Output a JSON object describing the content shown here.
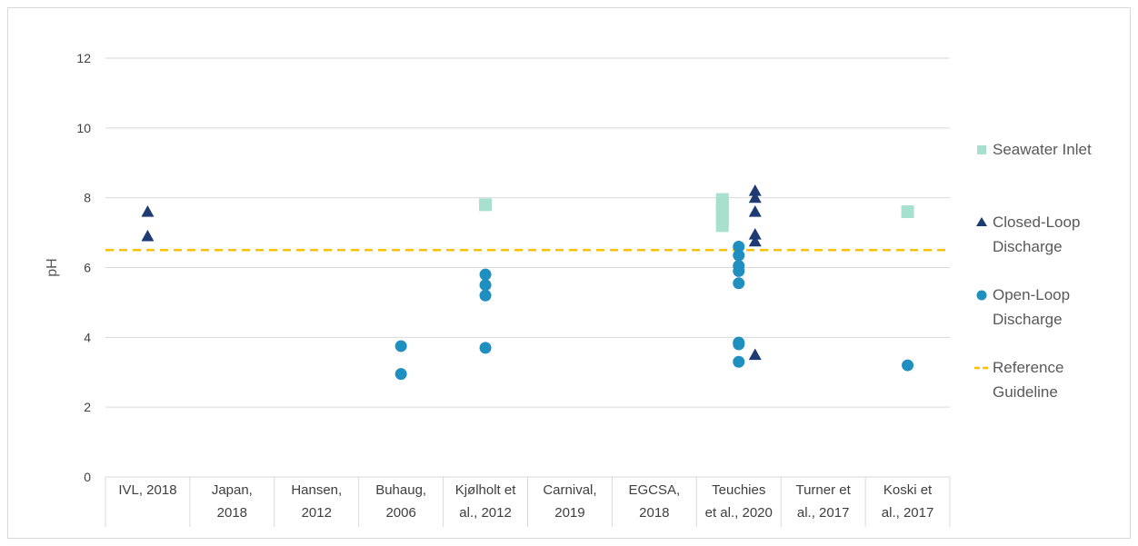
{
  "chart_data": {
    "type": "scatter",
    "ylabel": "pH",
    "xlabel": "",
    "ylim": [
      0,
      12
    ],
    "yticks": [
      0,
      2,
      4,
      6,
      8,
      10,
      12
    ],
    "grid": "horizontal",
    "legend_position": "right",
    "categories": [
      [
        "IVL, 2018"
      ],
      [
        "Japan,",
        "2018"
      ],
      [
        "Hansen,",
        "2012"
      ],
      [
        "Buhaug,",
        "2006"
      ],
      [
        "Kjølholt et",
        "al., 2012"
      ],
      [
        "Carnival,",
        "2019"
      ],
      [
        "EGCSA,",
        "2018"
      ],
      [
        "Teuchies",
        "et al., 2020"
      ],
      [
        "Turner et",
        "al., 2017"
      ],
      [
        "Koski et",
        "al., 2017"
      ]
    ],
    "reference_line": {
      "value": 6.5,
      "color": "#ffc000"
    },
    "series": [
      {
        "name": "Seawater Inlet",
        "marker": "square",
        "color": "#a8e0cf",
        "points": [
          {
            "category": 4,
            "y": 7.8
          },
          {
            "category": 7,
            "y": 7.2
          },
          {
            "category": 7,
            "y": 7.35
          },
          {
            "category": 7,
            "y": 7.5
          },
          {
            "category": 7,
            "y": 7.65
          },
          {
            "category": 7,
            "y": 7.8
          },
          {
            "category": 7,
            "y": 7.95
          },
          {
            "category": 9,
            "y": 7.6
          }
        ]
      },
      {
        "name": "Closed-Loop Discharge",
        "marker": "triangle",
        "color": "#1f3b73",
        "points": [
          {
            "category": 0,
            "y": 7.6
          },
          {
            "category": 0,
            "y": 6.9
          },
          {
            "category": 7,
            "y": 8.2
          },
          {
            "category": 7,
            "y": 8.0
          },
          {
            "category": 7,
            "y": 7.6
          },
          {
            "category": 7,
            "y": 6.95
          },
          {
            "category": 7,
            "y": 6.75
          },
          {
            "category": 7,
            "y": 3.5
          }
        ]
      },
      {
        "name": "Open-Loop Discharge",
        "marker": "circle",
        "color": "#1f8fbf",
        "points": [
          {
            "category": 3,
            "y": 3.75
          },
          {
            "category": 3,
            "y": 2.95
          },
          {
            "category": 4,
            "y": 5.8
          },
          {
            "category": 4,
            "y": 5.5
          },
          {
            "category": 4,
            "y": 5.2
          },
          {
            "category": 4,
            "y": 3.7
          },
          {
            "category": 7,
            "y": 6.6
          },
          {
            "category": 7,
            "y": 6.35
          },
          {
            "category": 7,
            "y": 6.05
          },
          {
            "category": 7,
            "y": 5.9
          },
          {
            "category": 7,
            "y": 5.55
          },
          {
            "category": 7,
            "y": 3.85
          },
          {
            "category": 7,
            "y": 3.8
          },
          {
            "category": 7,
            "y": 3.3
          },
          {
            "category": 9,
            "y": 3.2
          }
        ]
      }
    ],
    "legend": [
      {
        "series": 0,
        "lines": [
          "Seawater Inlet"
        ]
      },
      {
        "series": 1,
        "lines": [
          "Closed-Loop",
          "Discharge"
        ]
      },
      {
        "series": 2,
        "lines": [
          "Open-Loop",
          "Discharge"
        ]
      },
      {
        "reference": true,
        "lines": [
          "Reference",
          "Guideline"
        ]
      }
    ]
  }
}
